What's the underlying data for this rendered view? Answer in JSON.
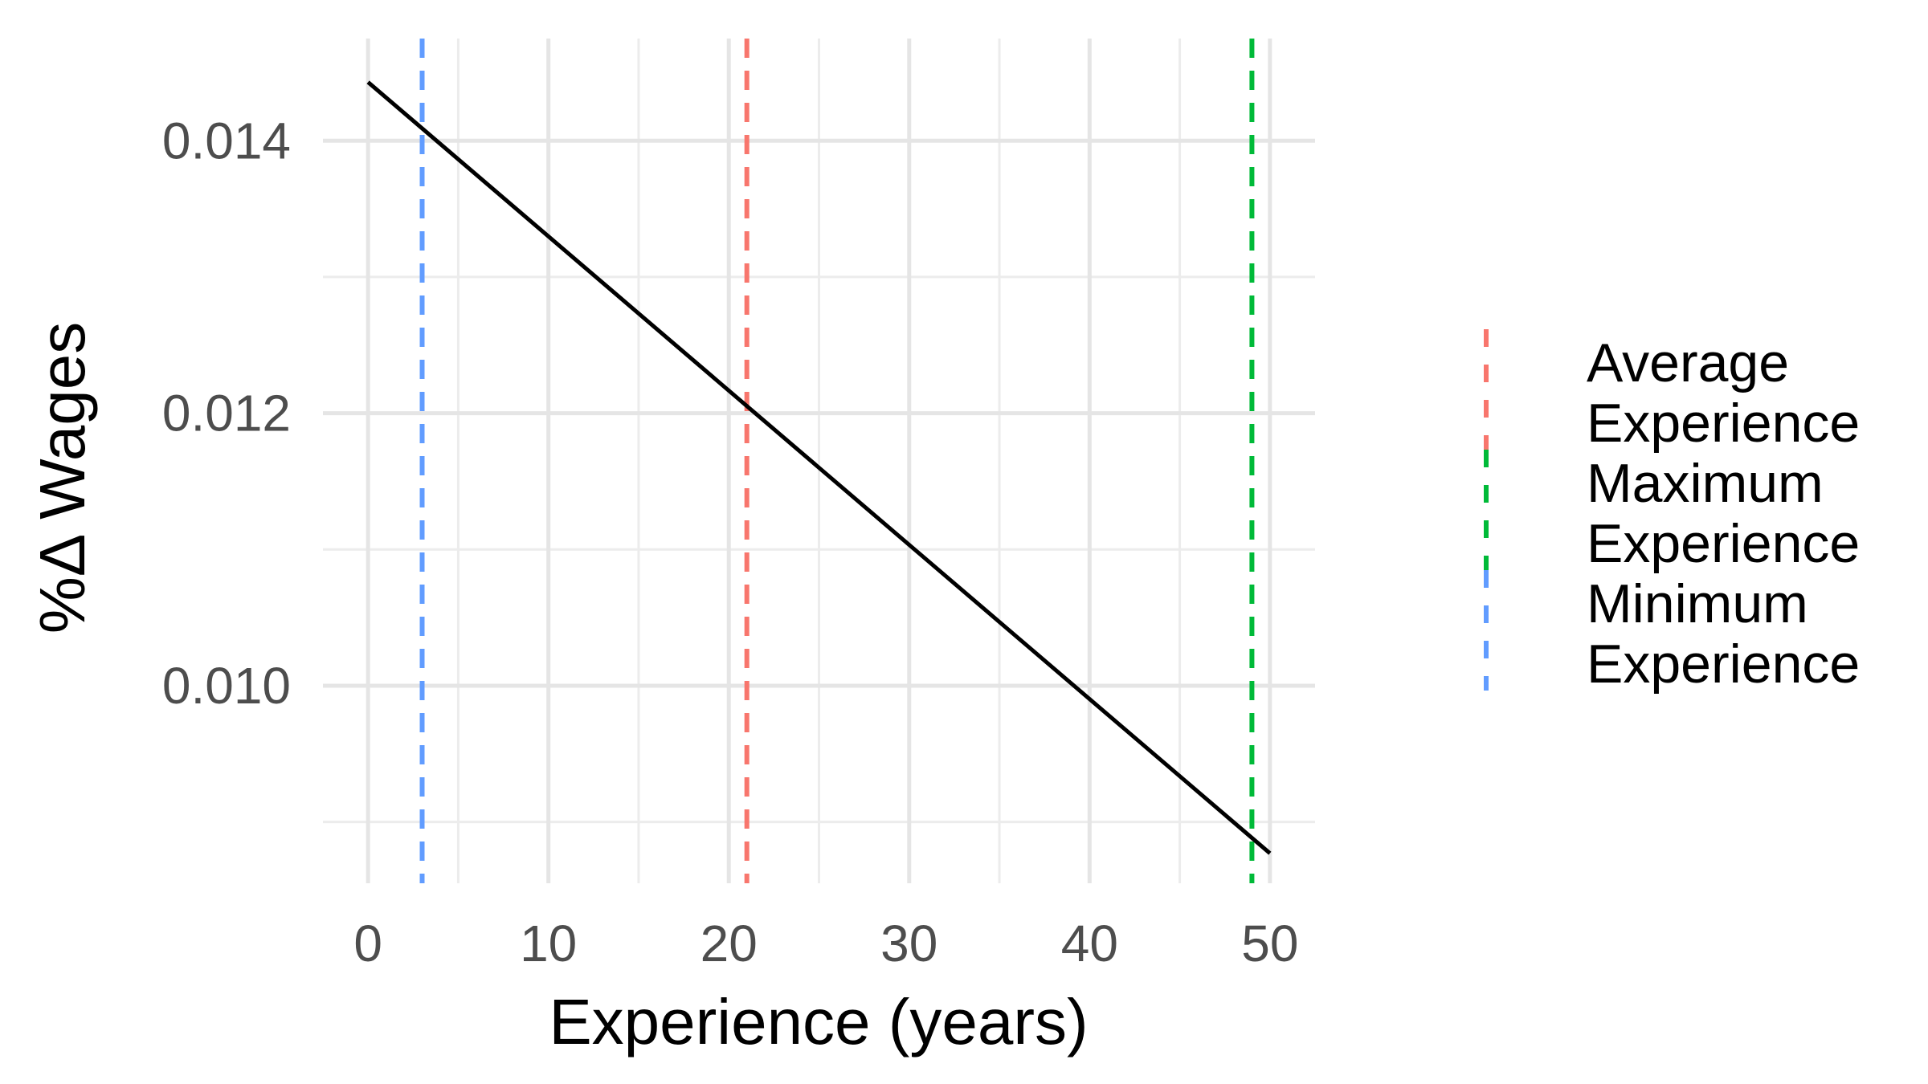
{
  "chart_data": {
    "type": "line",
    "title": "",
    "xlabel": "Experience (years)",
    "ylabel": "%Δ Wages",
    "xlim": [
      -2.5,
      52.5
    ],
    "ylim": [
      0.00855,
      0.01475
    ],
    "x_ticks": [
      0,
      10,
      20,
      30,
      40,
      50
    ],
    "x_tick_labels": [
      "0",
      "10",
      "20",
      "30",
      "40",
      "50"
    ],
    "x_minor_ticks": [
      5,
      15,
      25,
      35,
      45
    ],
    "y_ticks": [
      0.01,
      0.012,
      0.014
    ],
    "y_tick_labels": [
      "0.010",
      "0.012",
      "0.014"
    ],
    "y_minor_ticks": [
      0.009,
      0.011,
      0.013
    ],
    "grid": true,
    "series": [
      {
        "color": "#000000",
        "x": [
          0,
          50
        ],
        "y": [
          0.01443,
          0.00877
        ]
      }
    ],
    "vlines": [
      {
        "x": 3,
        "color": "#619CFF",
        "legend": "Minimum Experience"
      },
      {
        "x": 21,
        "color": "#F8766D",
        "legend": "Average Experience"
      },
      {
        "x": 49,
        "color": "#00BA38",
        "legend": "Maximum Experience"
      }
    ],
    "legend": {
      "position": "right",
      "entries": [
        {
          "lines": [
            "Average",
            "Experience"
          ],
          "color": "#F8766D"
        },
        {
          "lines": [
            "Maximum",
            "Experience"
          ],
          "color": "#00BA38"
        },
        {
          "lines": [
            "Minimum",
            "Experience"
          ],
          "color": "#619CFF"
        }
      ]
    }
  }
}
